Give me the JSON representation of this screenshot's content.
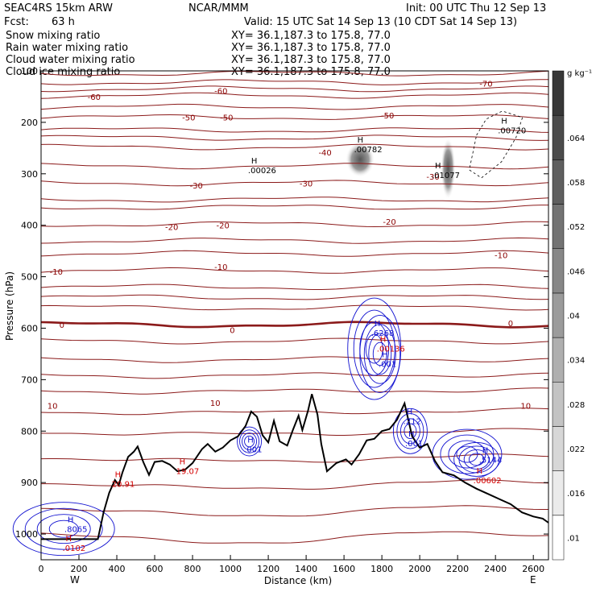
{
  "header": {
    "model": "SEAC4RS 15km ARW",
    "org": "NCAR/MMM",
    "init": "Init: 00 UTC Thu 12 Sep 13",
    "fcst_label": "Fcst:",
    "fcst_value": "63 h",
    "valid": "Valid: 15 UTC Sat 14 Sep 13 (10 CDT Sat 14 Sep 13)"
  },
  "legend": [
    {
      "label": "Snow mixing ratio",
      "xy": "XY=  36.1,187.3 to 175.8, 77.0",
      "color": "#000000"
    },
    {
      "label": "Rain water mixing ratio",
      "xy": "XY=  36.1,187.3 to 175.8, 77.0",
      "color": "#d40000"
    },
    {
      "label": "Cloud water mixing ratio",
      "xy": "XY=  36.1,187.3 to 175.8, 77.0",
      "color": "#1010d0"
    },
    {
      "label": "Cloud ice mixing ratio",
      "xy": "XY=  36.1,187.3 to 175.8, 77.0",
      "color": "#000000"
    }
  ],
  "axes": {
    "ylabel": "Pressure (hPa)",
    "xlabel": "Distance (km)",
    "west": "W",
    "east": "E",
    "colorbar_unit": "g kg⁻¹"
  },
  "chart_data": {
    "type": "contour cross-section",
    "x_ticks": [
      0,
      200,
      400,
      600,
      800,
      1000,
      1200,
      1400,
      1600,
      1800,
      2000,
      2200,
      2400,
      2600
    ],
    "x_range": [
      0,
      2680
    ],
    "y_ticks": [
      100,
      200,
      300,
      400,
      500,
      600,
      700,
      800,
      900,
      1000
    ],
    "y_range": [
      100,
      1050
    ],
    "colorbar_ticks": [
      ".01",
      ".016",
      ".022",
      ".028",
      ".034",
      ".04",
      ".046",
      ".052",
      ".058",
      ".064"
    ],
    "isotherms": [
      {
        "label": "-70",
        "p": 122
      },
      {
        "label": "-60",
        "p": 148
      },
      {
        "label": "-50",
        "p": 190
      },
      {
        "label": "-40",
        "p": 248
      },
      {
        "label": "-30",
        "p": 318
      },
      {
        "label": "-20",
        "p": 398
      },
      {
        "label": "-10",
        "p": 488
      },
      {
        "label": "0",
        "p": 593
      },
      {
        "label": "10",
        "p": 760
      }
    ],
    "contour_labels": [
      {
        "text": "-70",
        "x": 2350,
        "p": 124,
        "color": "#8b0000"
      },
      {
        "text": "-60",
        "x": 280,
        "p": 150,
        "color": "#8b0000"
      },
      {
        "text": "-60",
        "x": 950,
        "p": 138,
        "color": "#8b0000"
      },
      {
        "text": "-50",
        "x": 780,
        "p": 190,
        "color": "#8b0000"
      },
      {
        "text": "-50",
        "x": 980,
        "p": 190,
        "color": "#8b0000"
      },
      {
        "text": "-50",
        "x": 1830,
        "p": 186,
        "color": "#8b0000"
      },
      {
        "text": "-40",
        "x": 1500,
        "p": 258,
        "color": "#8b0000"
      },
      {
        "text": "-30",
        "x": 820,
        "p": 322,
        "color": "#8b0000"
      },
      {
        "text": "-30",
        "x": 1400,
        "p": 318,
        "color": "#8b0000"
      },
      {
        "text": "-30",
        "x": 2070,
        "p": 305,
        "color": "#8b0000"
      },
      {
        "text": "-20",
        "x": 690,
        "p": 403,
        "color": "#8b0000"
      },
      {
        "text": "-20",
        "x": 960,
        "p": 400,
        "color": "#8b0000"
      },
      {
        "text": "-20",
        "x": 1840,
        "p": 393,
        "color": "#8b0000"
      },
      {
        "text": "-10",
        "x": 80,
        "p": 490,
        "color": "#8b0000"
      },
      {
        "text": "-10",
        "x": 950,
        "p": 480,
        "color": "#8b0000"
      },
      {
        "text": "-10",
        "x": 2430,
        "p": 458,
        "color": "#8b0000"
      },
      {
        "text": "0",
        "x": 110,
        "p": 593,
        "color": "#8b0000"
      },
      {
        "text": "0",
        "x": 1010,
        "p": 603,
        "color": "#8b0000"
      },
      {
        "text": "0",
        "x": 2480,
        "p": 590,
        "color": "#8b0000"
      },
      {
        "text": "10",
        "x": 60,
        "p": 750,
        "color": "#8b0000"
      },
      {
        "text": "10",
        "x": 920,
        "p": 745,
        "color": "#8b0000"
      },
      {
        "text": "10",
        "x": 2560,
        "p": 750,
        "color": "#8b0000"
      }
    ],
    "maxima": [
      {
        "label": ".00026",
        "x": 1110,
        "p": 296,
        "color": "#000000"
      },
      {
        "label": ".00782",
        "x": 1670,
        "p": 255,
        "color": "#000000"
      },
      {
        "label": ".01077",
        "x": 2080,
        "p": 305,
        "color": "#000000"
      },
      {
        "label": ".00720",
        "x": 2430,
        "p": 218,
        "color": "#000000"
      },
      {
        "label": ".6268",
        "x": 1760,
        "p": 612,
        "color": "#1010d0"
      },
      {
        "label": ".00136",
        "x": 1790,
        "p": 642,
        "color": "#d40000"
      },
      {
        "label": ".001",
        "x": 1800,
        "p": 672,
        "color": "#1010d0"
      },
      {
        "label": ".212",
        "x": 1930,
        "p": 783,
        "color": "#1010d0"
      },
      {
        "label": ".001",
        "x": 1940,
        "p": 826,
        "color": "#1010d0"
      },
      {
        "label": ".001",
        "x": 1090,
        "p": 838,
        "color": "#1010d0"
      },
      {
        "label": "19.07",
        "x": 730,
        "p": 880,
        "color": "#d40000"
      },
      {
        "label": "20.91",
        "x": 390,
        "p": 905,
        "color": "#d40000"
      },
      {
        "label": ".5144",
        "x": 2330,
        "p": 858,
        "color": "#1010d0"
      },
      {
        "label": ".00602",
        "x": 2300,
        "p": 898,
        "color": "#d40000"
      },
      {
        "label": ".8065",
        "x": 140,
        "p": 993,
        "color": "#1010d0"
      },
      {
        "label": ".0102",
        "x": 130,
        "p": 1030,
        "color": "#d40000"
      }
    ],
    "terrain": [
      [
        0,
        1010
      ],
      [
        300,
        1010
      ],
      [
        330,
        958
      ],
      [
        360,
        920
      ],
      [
        390,
        895
      ],
      [
        410,
        905
      ],
      [
        430,
        880
      ],
      [
        460,
        850
      ],
      [
        490,
        840
      ],
      [
        510,
        830
      ],
      [
        540,
        860
      ],
      [
        570,
        885
      ],
      [
        600,
        860
      ],
      [
        640,
        858
      ],
      [
        680,
        865
      ],
      [
        720,
        878
      ],
      [
        760,
        875
      ],
      [
        800,
        862
      ],
      [
        850,
        835
      ],
      [
        880,
        825
      ],
      [
        920,
        840
      ],
      [
        960,
        832
      ],
      [
        1000,
        818
      ],
      [
        1040,
        810
      ],
      [
        1080,
        790
      ],
      [
        1110,
        762
      ],
      [
        1140,
        772
      ],
      [
        1170,
        808
      ],
      [
        1200,
        822
      ],
      [
        1230,
        780
      ],
      [
        1260,
        820
      ],
      [
        1300,
        828
      ],
      [
        1330,
        798
      ],
      [
        1360,
        770
      ],
      [
        1380,
        798
      ],
      [
        1410,
        760
      ],
      [
        1430,
        728
      ],
      [
        1460,
        768
      ],
      [
        1480,
        825
      ],
      [
        1510,
        878
      ],
      [
        1560,
        862
      ],
      [
        1610,
        855
      ],
      [
        1640,
        865
      ],
      [
        1680,
        845
      ],
      [
        1720,
        818
      ],
      [
        1760,
        815
      ],
      [
        1800,
        800
      ],
      [
        1840,
        796
      ],
      [
        1880,
        778
      ],
      [
        1920,
        746
      ],
      [
        1960,
        810
      ],
      [
        2000,
        832
      ],
      [
        2040,
        825
      ],
      [
        2080,
        858
      ],
      [
        2120,
        880
      ],
      [
        2180,
        886
      ],
      [
        2240,
        900
      ],
      [
        2300,
        912
      ],
      [
        2360,
        922
      ],
      [
        2420,
        932
      ],
      [
        2480,
        942
      ],
      [
        2540,
        958
      ],
      [
        2600,
        966
      ],
      [
        2650,
        970
      ],
      [
        2680,
        978
      ]
    ]
  }
}
